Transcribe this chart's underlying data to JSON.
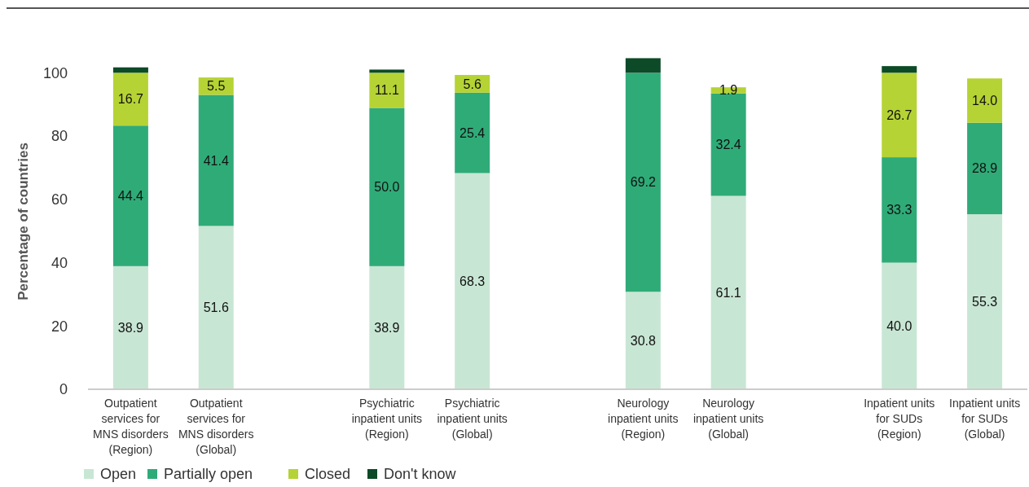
{
  "chart_data": {
    "type": "bar",
    "stacked": true,
    "ylabel": "Percentage of countries",
    "categories": [
      "Outpatient\nservices for\nMNS disorders\n(Region)",
      "Outpatient\nservices for\nMNS disorders\n(Global)",
      "Psychiatric\ninpatient units\n(Region)",
      "Psychiatric\ninpatient units\n(Global)",
      "Neurology\ninpatient units\n(Region)",
      "Neurology\ninpatient units\n(Global)",
      "Inpatient units\nfor SUDs\n(Region)",
      "Inpatient units\nfor SUDs\n(Global)"
    ],
    "series": [
      {
        "name": "Open",
        "color": "#c8e6d4",
        "values": [
          38.9,
          51.6,
          38.9,
          68.3,
          30.8,
          61.1,
          40.0,
          55.3
        ],
        "value_labels": [
          "38.9",
          "51.6",
          "38.9",
          "68.3",
          "30.8",
          "61.1",
          "40.0",
          "55.3"
        ]
      },
      {
        "name": "Partially open",
        "color": "#2fab78",
        "values": [
          44.4,
          41.4,
          50.0,
          25.4,
          69.2,
          32.4,
          33.3,
          28.9
        ],
        "value_labels": [
          "44.4",
          "41.4",
          "50.0",
          "25.4",
          "69.2",
          "32.4",
          "33.3",
          "28.9"
        ]
      },
      {
        "name": "Closed",
        "color": "#b5d334",
        "values": [
          16.7,
          5.5,
          11.1,
          5.6,
          null,
          1.9,
          26.7,
          14.0
        ],
        "value_labels": [
          "16.7",
          "5.5",
          "11.1",
          "5.6",
          null,
          "1.9",
          "26.7",
          "14.0"
        ]
      },
      {
        "name": "Don't know",
        "color": "#0d4a27",
        "values": [
          1.7,
          null,
          1.0,
          null,
          4.6,
          null,
          2.1,
          null
        ],
        "value_labels": [
          null,
          null,
          null,
          null,
          null,
          null,
          null,
          null
        ]
      }
    ],
    "ylim": [
      0,
      106
    ],
    "yticks": [
      0,
      20,
      40,
      60,
      80,
      100
    ],
    "grid": false,
    "legend": "bottom left"
  }
}
